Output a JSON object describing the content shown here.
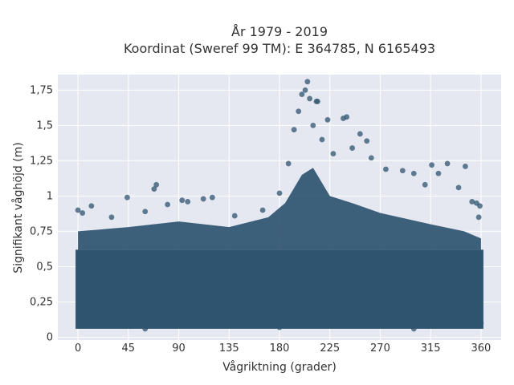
{
  "chart_data": {
    "type": "scatter",
    "title_line1": "År 1979 - 2019",
    "title_line2": "Koordinat (Sweref 99 TM): E 364785, N 6165493",
    "xlabel": "Vågriktning (grader)",
    "ylabel": "Signifikant våghöjd (m)",
    "xlim": [
      -18,
      378
    ],
    "ylim": [
      -0.02,
      1.86
    ],
    "x_ticks": [
      0,
      45,
      90,
      135,
      180,
      225,
      270,
      315,
      360
    ],
    "x_tick_labels": [
      "0",
      "45",
      "90",
      "135",
      "180",
      "225",
      "270",
      "315",
      "360"
    ],
    "y_ticks": [
      0,
      0.25,
      0.5,
      0.75,
      1,
      1.25,
      1.5,
      1.75
    ],
    "y_tick_labels": [
      "0",
      "0,25",
      "0,5",
      "0,75",
      "1",
      "1,25",
      "1,5",
      "1,75"
    ],
    "grid": true,
    "marker_color": "#2f5470",
    "plot_bg": "#e5e8f0",
    "dense_band": {
      "x_range": [
        0,
        360
      ],
      "y_range": [
        0.06,
        0.62
      ]
    },
    "envelope": [
      {
        "x": 0,
        "y": 0.75
      },
      {
        "x": 45,
        "y": 0.78
      },
      {
        "x": 90,
        "y": 0.82
      },
      {
        "x": 135,
        "y": 0.78
      },
      {
        "x": 170,
        "y": 0.85
      },
      {
        "x": 185,
        "y": 0.95
      },
      {
        "x": 200,
        "y": 1.15
      },
      {
        "x": 210,
        "y": 1.2
      },
      {
        "x": 225,
        "y": 1.0
      },
      {
        "x": 245,
        "y": 0.95
      },
      {
        "x": 270,
        "y": 0.88
      },
      {
        "x": 315,
        "y": 0.8
      },
      {
        "x": 345,
        "y": 0.75
      },
      {
        "x": 360,
        "y": 0.7
      }
    ],
    "points": [
      {
        "x": 0,
        "y": 0.9
      },
      {
        "x": 4,
        "y": 0.88
      },
      {
        "x": 12,
        "y": 0.93
      },
      {
        "x": 30,
        "y": 0.85
      },
      {
        "x": 44,
        "y": 0.99
      },
      {
        "x": 60,
        "y": 0.89
      },
      {
        "x": 68,
        "y": 1.05
      },
      {
        "x": 70,
        "y": 1.08
      },
      {
        "x": 80,
        "y": 0.94
      },
      {
        "x": 93,
        "y": 0.97
      },
      {
        "x": 98,
        "y": 0.96
      },
      {
        "x": 112,
        "y": 0.98
      },
      {
        "x": 120,
        "y": 0.99
      },
      {
        "x": 140,
        "y": 0.86
      },
      {
        "x": 165,
        "y": 0.9
      },
      {
        "x": 180,
        "y": 1.02
      },
      {
        "x": 188,
        "y": 1.23
      },
      {
        "x": 193,
        "y": 1.47
      },
      {
        "x": 197,
        "y": 1.6
      },
      {
        "x": 200,
        "y": 1.72
      },
      {
        "x": 203,
        "y": 1.75
      },
      {
        "x": 205,
        "y": 1.81
      },
      {
        "x": 207,
        "y": 1.69
      },
      {
        "x": 210,
        "y": 1.5
      },
      {
        "x": 213,
        "y": 1.67
      },
      {
        "x": 214,
        "y": 1.67
      },
      {
        "x": 218,
        "y": 1.4
      },
      {
        "x": 223,
        "y": 1.54
      },
      {
        "x": 228,
        "y": 1.3
      },
      {
        "x": 237,
        "y": 1.55
      },
      {
        "x": 240,
        "y": 1.56
      },
      {
        "x": 245,
        "y": 1.34
      },
      {
        "x": 252,
        "y": 1.44
      },
      {
        "x": 258,
        "y": 1.39
      },
      {
        "x": 262,
        "y": 1.27
      },
      {
        "x": 275,
        "y": 1.19
      },
      {
        "x": 290,
        "y": 1.18
      },
      {
        "x": 300,
        "y": 1.16
      },
      {
        "x": 310,
        "y": 1.08
      },
      {
        "x": 316,
        "y": 1.22
      },
      {
        "x": 322,
        "y": 1.16
      },
      {
        "x": 330,
        "y": 1.23
      },
      {
        "x": 340,
        "y": 1.06
      },
      {
        "x": 346,
        "y": 1.21
      },
      {
        "x": 352,
        "y": 0.96
      },
      {
        "x": 356,
        "y": 0.95
      },
      {
        "x": 358,
        "y": 0.85
      },
      {
        "x": 359,
        "y": 0.93
      },
      {
        "x": 2,
        "y": 0.1
      },
      {
        "x": 360,
        "y": 0.1
      },
      {
        "x": 180,
        "y": 0.07
      },
      {
        "x": 300,
        "y": 0.06
      },
      {
        "x": 60,
        "y": 0.06
      }
    ]
  }
}
